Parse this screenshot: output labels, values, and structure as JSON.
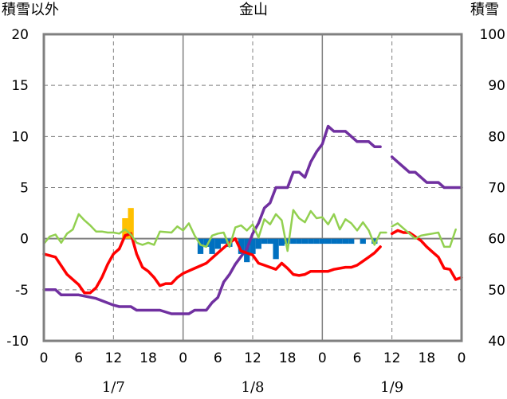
{
  "chart_data": {
    "type": "line",
    "title": "金山",
    "ylabel_left": "積雪以外",
    "ylabel_right": "積雪",
    "y_left": {
      "range": [
        -10,
        20
      ],
      "ticks": [
        "-10",
        "-5",
        "0",
        "5",
        "10",
        "15",
        "20"
      ]
    },
    "y_right": {
      "range": [
        40,
        100
      ],
      "ticks": [
        "40",
        "50",
        "60",
        "70",
        "80",
        "90",
        "100"
      ]
    },
    "x": {
      "unit": "hours from 1/7 00:00",
      "range": [
        0,
        72
      ]
    },
    "x_hour_labels": [
      "0",
      "6",
      "12",
      "18",
      "0",
      "6",
      "12",
      "18",
      "0",
      "6",
      "12",
      "18",
      "0"
    ],
    "x_hour_positions": [
      0,
      6,
      12,
      18,
      24,
      30,
      36,
      42,
      48,
      54,
      60,
      66,
      72
    ],
    "dates": [
      {
        "label": "1/7",
        "hour": 12
      },
      {
        "label": "1/8",
        "hour": 36
      },
      {
        "label": "1/9",
        "hour": 60
      }
    ],
    "grid": {
      "horizontal": "dashed",
      "vertical_dashed": [
        12,
        36,
        60
      ],
      "vertical_solid": [
        24,
        48
      ]
    },
    "series": [
      {
        "axis": "right",
        "color": "#7030a0",
        "points": [
          [
            0,
            50
          ],
          [
            2,
            50
          ],
          [
            3,
            49
          ],
          [
            6,
            49
          ],
          [
            9,
            48.3
          ],
          [
            12,
            47
          ],
          [
            13,
            46.7
          ],
          [
            15,
            46.7
          ],
          [
            16,
            46
          ],
          [
            20,
            46
          ],
          [
            22,
            45.3
          ],
          [
            25,
            45.3
          ],
          [
            26,
            46
          ],
          [
            28,
            46
          ],
          [
            29,
            47.5
          ],
          [
            30,
            48.5
          ],
          [
            31,
            51.5
          ],
          [
            32,
            53
          ],
          [
            33,
            55
          ],
          [
            34,
            56.5
          ],
          [
            35,
            58
          ],
          [
            36,
            61
          ],
          [
            37,
            63
          ],
          [
            38,
            66
          ],
          [
            39,
            67
          ],
          [
            40,
            70
          ],
          [
            42,
            70
          ],
          [
            43,
            73
          ],
          [
            44,
            73
          ],
          [
            45,
            72
          ],
          [
            46,
            75
          ],
          [
            47,
            77
          ],
          [
            48,
            78.5
          ],
          [
            49,
            82
          ],
          [
            50,
            81
          ],
          [
            52,
            81
          ],
          [
            54,
            79
          ],
          [
            56,
            79
          ],
          [
            57,
            78
          ],
          [
            58,
            78
          ]
        ]
      },
      {
        "axis": "right",
        "color": "#7030a0",
        "points": [
          [
            60,
            76
          ],
          [
            61,
            75
          ],
          [
            63,
            73
          ],
          [
            64,
            73
          ],
          [
            66,
            71
          ],
          [
            68,
            71
          ],
          [
            69,
            70
          ],
          [
            72,
            70
          ]
        ]
      },
      {
        "axis": "left",
        "color": "#ff0000",
        "points": [
          [
            0,
            -1.5
          ],
          [
            2,
            -1.8
          ],
          [
            4,
            -3.5
          ],
          [
            6,
            -4.5
          ],
          [
            7,
            -5.3
          ],
          [
            8,
            -5.3
          ],
          [
            9,
            -4.8
          ],
          [
            10,
            -3.8
          ],
          [
            11,
            -2.5
          ],
          [
            12,
            -1.5
          ],
          [
            13,
            -1
          ],
          [
            14,
            0.3
          ],
          [
            15,
            0.5
          ],
          [
            16,
            -1.5
          ],
          [
            17,
            -2.8
          ],
          [
            18,
            -3.2
          ],
          [
            19,
            -3.8
          ],
          [
            20,
            -4.6
          ],
          [
            21,
            -4.4
          ],
          [
            22,
            -4.4
          ],
          [
            23,
            -3.8
          ],
          [
            24,
            -3.4
          ],
          [
            26,
            -2.9
          ],
          [
            28,
            -2.4
          ],
          [
            30,
            -1.4
          ],
          [
            32,
            -0.4
          ],
          [
            33,
            0
          ],
          [
            34,
            -1.2
          ],
          [
            35,
            -1.4
          ],
          [
            36,
            -1.6
          ],
          [
            37,
            -2.4
          ],
          [
            38,
            -2.6
          ],
          [
            39,
            -2.8
          ],
          [
            40,
            -3
          ],
          [
            41,
            -2.4
          ],
          [
            42,
            -2.9
          ],
          [
            43,
            -3.5
          ],
          [
            44,
            -3.6
          ],
          [
            45,
            -3.5
          ],
          [
            46,
            -3.2
          ],
          [
            48,
            -3.2
          ],
          [
            49,
            -3.2
          ],
          [
            50,
            -3
          ],
          [
            52,
            -2.8
          ],
          [
            53,
            -2.8
          ],
          [
            54,
            -2.6
          ],
          [
            55,
            -2.2
          ],
          [
            56,
            -1.8
          ],
          [
            57,
            -1.4
          ],
          [
            58,
            -0.8
          ]
        ]
      },
      {
        "axis": "left",
        "color": "#ff0000",
        "points": [
          [
            60,
            0.5
          ],
          [
            61,
            0.8
          ],
          [
            62,
            0.6
          ],
          [
            63,
            0.6
          ],
          [
            65,
            -0.2
          ],
          [
            66,
            -0.8
          ],
          [
            67,
            -1.3
          ],
          [
            68,
            -1.8
          ],
          [
            69,
            -2.9
          ],
          [
            70,
            -3
          ],
          [
            71,
            -4
          ],
          [
            72,
            -3.8
          ]
        ]
      },
      {
        "axis": "left",
        "color": "#92d050",
        "points": [
          [
            0,
            -0.5
          ],
          [
            1,
            0.2
          ],
          [
            2,
            0.4
          ],
          [
            3,
            -0.4
          ],
          [
            4,
            0.5
          ],
          [
            5,
            0.9
          ],
          [
            6,
            2.4
          ],
          [
            7,
            1.8
          ],
          [
            8,
            1.3
          ],
          [
            9,
            0.7
          ],
          [
            10,
            0.7
          ],
          [
            11,
            0.6
          ],
          [
            12,
            0.6
          ],
          [
            13,
            0.5
          ],
          [
            14,
            0.9
          ],
          [
            15,
            0.4
          ],
          [
            16,
            -0.4
          ],
          [
            17,
            -0.6
          ],
          [
            18,
            -0.4
          ],
          [
            19,
            -0.6
          ],
          [
            20,
            0.7
          ],
          [
            22,
            0.6
          ],
          [
            23,
            1.2
          ],
          [
            24,
            0.8
          ],
          [
            25,
            1.5
          ],
          [
            26,
            0.3
          ],
          [
            27,
            -0.6
          ],
          [
            28,
            -0.8
          ],
          [
            29,
            0.3
          ],
          [
            30,
            0.5
          ],
          [
            31,
            0.6
          ],
          [
            32,
            -0.8
          ],
          [
            33,
            1.1
          ],
          [
            34,
            1.3
          ],
          [
            35,
            0.8
          ],
          [
            36,
            1.4
          ],
          [
            37,
            0.1
          ],
          [
            38,
            1.9
          ],
          [
            39,
            1.4
          ],
          [
            40,
            2.4
          ],
          [
            41,
            1.8
          ],
          [
            42,
            -1.2
          ],
          [
            43,
            2.8
          ],
          [
            44,
            2
          ],
          [
            45,
            1.6
          ],
          [
            46,
            2.7
          ],
          [
            47,
            2
          ],
          [
            48,
            2.1
          ],
          [
            49,
            1.4
          ],
          [
            50,
            2.4
          ],
          [
            51,
            0.9
          ],
          [
            52,
            1.9
          ],
          [
            53,
            1.5
          ],
          [
            54,
            0.8
          ],
          [
            55,
            1.6
          ],
          [
            56,
            0.8
          ],
          [
            57,
            -0.6
          ],
          [
            58,
            0.6
          ],
          [
            59,
            0.6
          ]
        ]
      },
      {
        "axis": "left",
        "color": "#92d050",
        "points": [
          [
            60,
            1.2
          ],
          [
            61,
            1.5
          ],
          [
            62,
            1
          ],
          [
            63,
            0.5
          ],
          [
            64,
            0
          ],
          [
            65,
            0.3
          ],
          [
            66,
            0.4
          ],
          [
            67,
            0.5
          ],
          [
            68,
            0.6
          ],
          [
            69,
            -0.8
          ],
          [
            70,
            -0.8
          ],
          [
            71,
            0.9
          ]
        ]
      }
    ],
    "bars": [
      {
        "axis": "left",
        "color": "#ffc000",
        "data": [
          [
            14,
            2
          ],
          [
            15,
            3
          ]
        ]
      },
      {
        "axis": "left",
        "color": "#0070c0",
        "data": [
          [
            27,
            -1.5
          ],
          [
            28,
            -0.8
          ],
          [
            29,
            -1.5
          ],
          [
            30,
            -1
          ],
          [
            31,
            -0.5
          ],
          [
            32,
            -0.8
          ],
          [
            34,
            -1.5
          ],
          [
            35,
            -2.3
          ],
          [
            36,
            -1.5
          ],
          [
            37,
            -1
          ],
          [
            38,
            -0.5
          ],
          [
            39,
            -0.5
          ],
          [
            40,
            -2
          ],
          [
            41,
            -0.7
          ],
          [
            42,
            -0.5
          ],
          [
            43,
            -0.5
          ],
          [
            44,
            -0.5
          ],
          [
            45,
            -0.5
          ],
          [
            46,
            -0.5
          ],
          [
            47,
            -0.5
          ],
          [
            48,
            -0.5
          ],
          [
            49,
            -0.5
          ],
          [
            50,
            -0.5
          ],
          [
            51,
            -0.5
          ],
          [
            52,
            -0.5
          ],
          [
            53,
            -0.5
          ],
          [
            55,
            -0.5
          ],
          [
            57,
            -0.5
          ]
        ]
      }
    ]
  }
}
